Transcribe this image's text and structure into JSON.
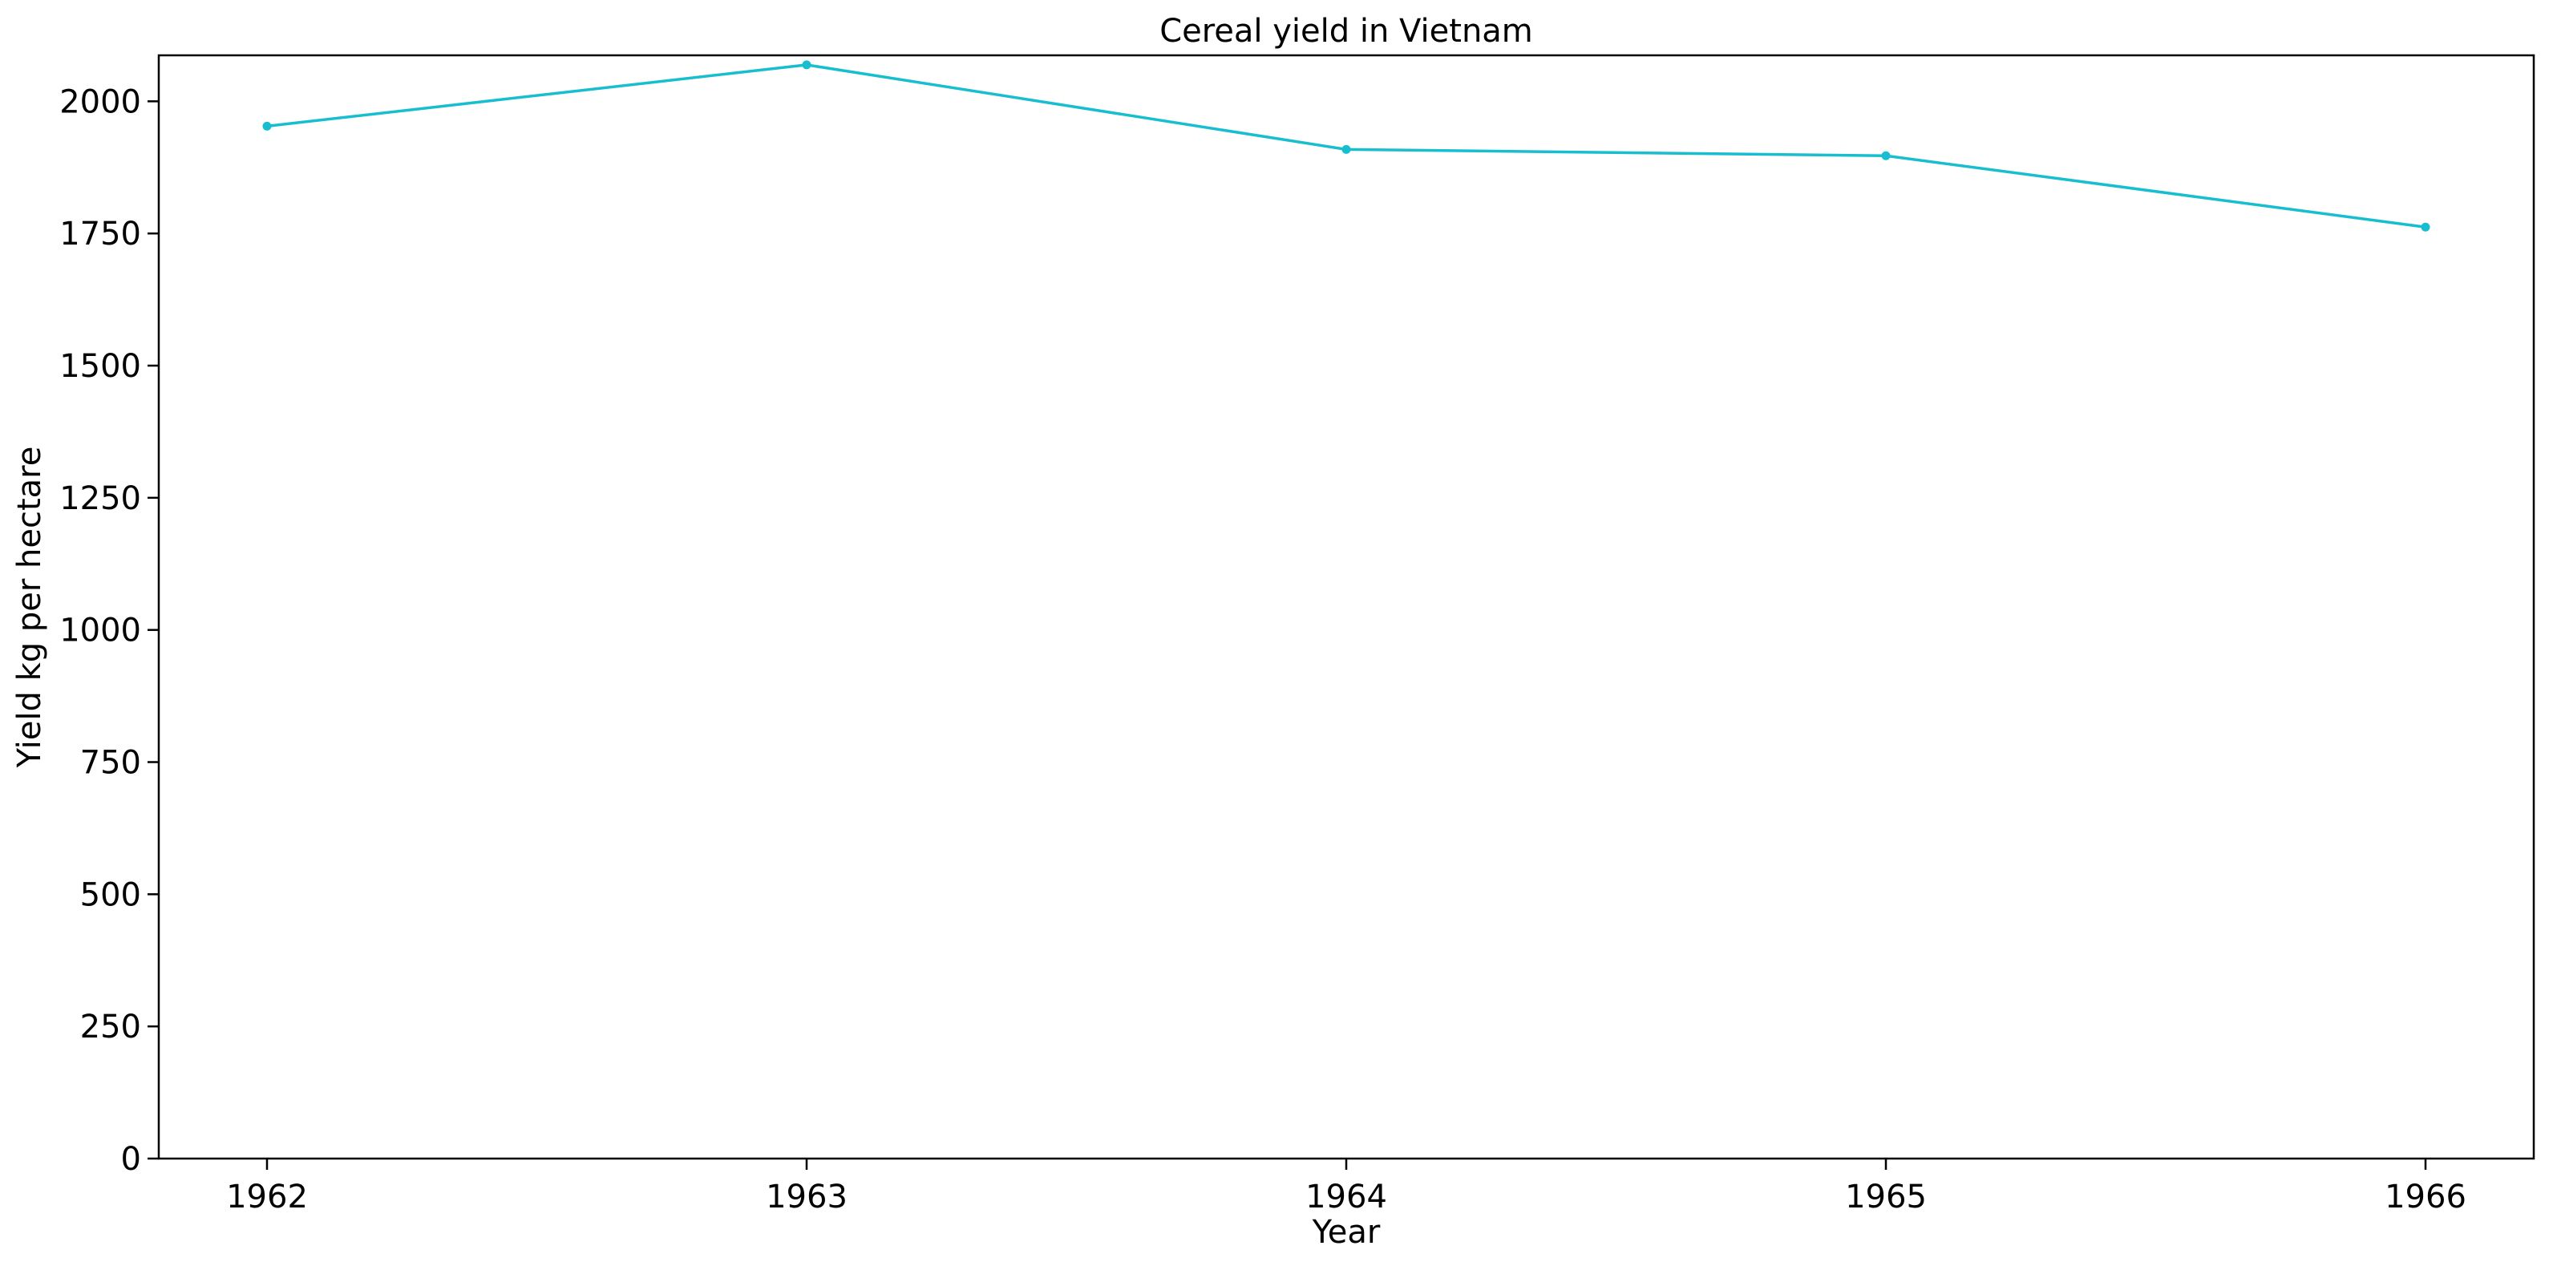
{
  "chart_data": {
    "type": "line",
    "title": "Cereal yield in Vietnam",
    "xlabel": "Year",
    "ylabel": "Yield kg per hectare",
    "x": [
      "1962",
      "1963",
      "1964",
      "1965",
      "1966"
    ],
    "series": [
      {
        "values": [
          1953,
          2069,
          1909,
          1897,
          1762
        ],
        "color": "#17becf",
        "marker": "circle"
      }
    ],
    "xticks": [
      "1962",
      "1963",
      "1964",
      "1965",
      "1966"
    ],
    "yticks": [
      "0",
      "250",
      "500",
      "750",
      "1000",
      "1250",
      "1500",
      "1750",
      "2000"
    ],
    "ylim": [
      0,
      2087
    ],
    "grid": false,
    "legend": false
  }
}
